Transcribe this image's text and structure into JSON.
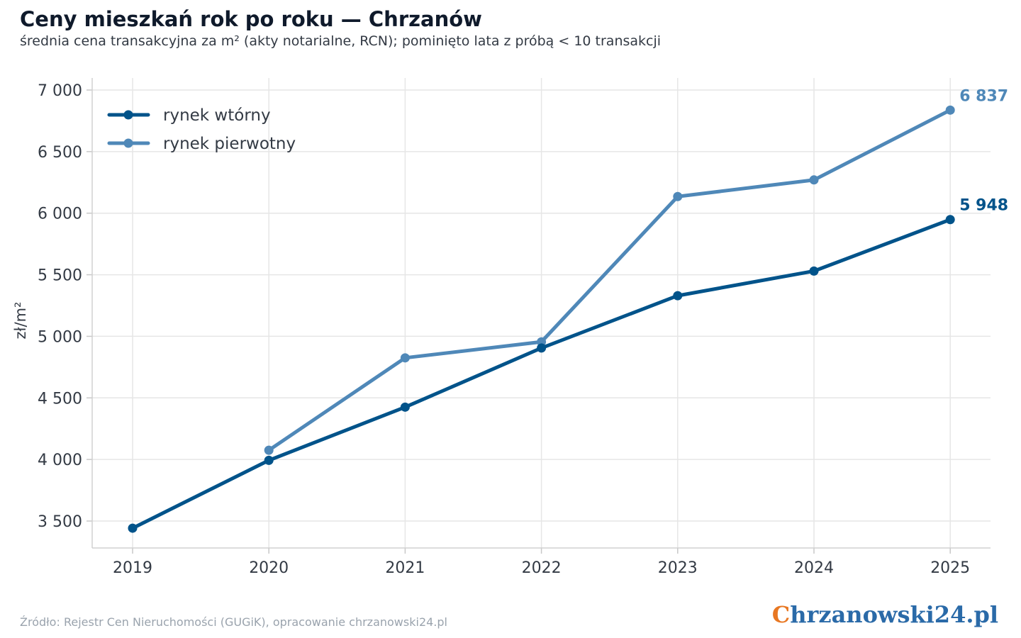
{
  "title": "Ceny mieszkań rok po roku — Chrzanów",
  "subtitle": "średnia cena transakcyjna za m² (akty notarialne, RCN); pominięto lata z próbą < 10 transakcji",
  "footer": {
    "source": "Źródło: Rejestr Cen Nieruchomości (GUGiK), opracowanie chrzanowski24.pl"
  },
  "brand": {
    "first_letter": "C",
    "rest": "hrzanowski24.pl"
  },
  "colors": {
    "secondary": "#00538a",
    "primary": "#4f88b8",
    "grid": "#e6e6e6",
    "text": "#333a44"
  },
  "chart_data": {
    "type": "line",
    "x": [
      "2019",
      "2020",
      "2021",
      "2022",
      "2023",
      "2024",
      "2025"
    ],
    "ylabel": "zł/m²",
    "ylim": [
      3280,
      7000
    ],
    "yticks": [
      3500,
      4000,
      4500,
      5000,
      5500,
      6000,
      6500,
      7000
    ],
    "ytick_labels": [
      "3 500",
      "4 000",
      "4 500",
      "5 000",
      "5 500",
      "6 000",
      "6 500",
      "7 000"
    ],
    "grid": true,
    "legend_position": "top-left",
    "series": [
      {
        "name": "rynek wtórny",
        "color": "#00538a",
        "values": [
          3442,
          3993,
          4425,
          4905,
          5330,
          5530,
          5948
        ],
        "end_label": "5 948"
      },
      {
        "name": "rynek pierwotny",
        "color": "#4f88b8",
        "values": [
          null,
          4075,
          4825,
          4955,
          6135,
          6270,
          6837
        ],
        "end_label": "6 837"
      }
    ]
  }
}
